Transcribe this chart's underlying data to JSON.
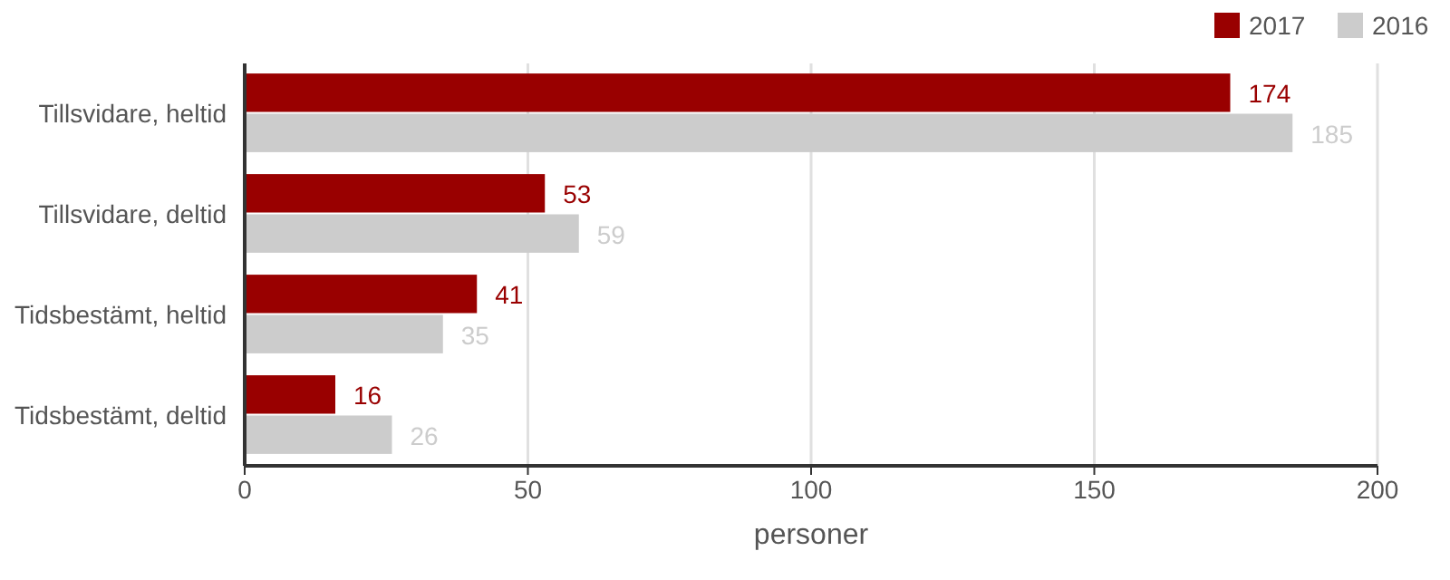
{
  "chart_data": {
    "type": "bar",
    "orientation": "horizontal",
    "xlabel": "personer",
    "categories": [
      "Tillsvidare, heltid",
      "Tillsvidare, deltid",
      "Tidsbestämt, heltid",
      "Tidsbestämt, deltid"
    ],
    "series": [
      {
        "name": "2017",
        "color": "#990000",
        "values": [
          174,
          53,
          41,
          16
        ]
      },
      {
        "name": "2016",
        "color": "#cccccc",
        "values": [
          185,
          59,
          35,
          26
        ]
      }
    ],
    "xlim": [
      0,
      200
    ],
    "xticks": [
      0,
      50,
      100,
      150,
      200
    ],
    "grid": "x",
    "legend": "top right",
    "data_labels": true
  }
}
